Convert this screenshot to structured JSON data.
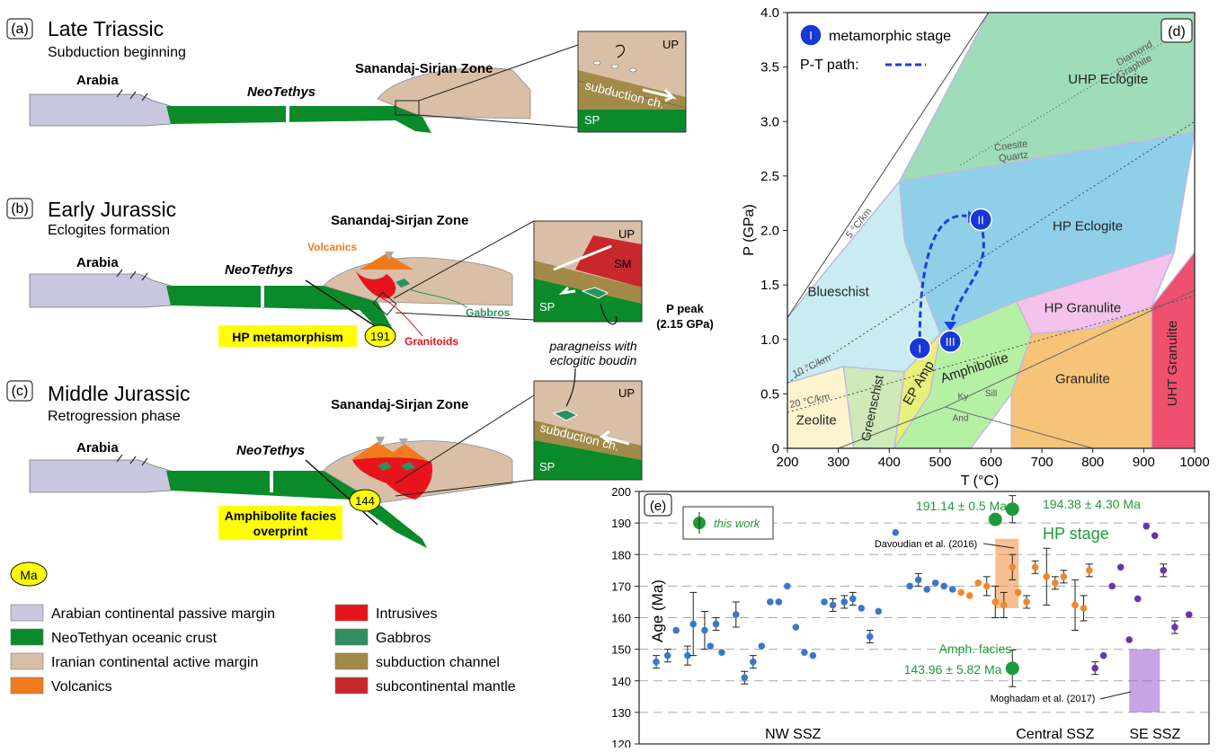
{
  "panels": {
    "a": {
      "letter": "(a)",
      "title": "Late Triassic",
      "subtitle": "Subduction beginning"
    },
    "b": {
      "letter": "(b)",
      "title": "Early Jurassic",
      "subtitle": "Eclogites formation"
    },
    "c": {
      "letter": "(c)",
      "title": "Middle Jurassic",
      "subtitle": "Retrogression phase"
    },
    "d": {
      "letter": "(d)"
    },
    "e": {
      "letter": "(e)"
    }
  },
  "sections": {
    "arabia": "Arabia",
    "neotethys": "NeoTethys",
    "ssz": "Sanandaj-Sirjan Zone",
    "volcanics": "Volcanics",
    "gabbros": "Gabbros",
    "granitoids": "Granitoids",
    "hp_metamorphism": "HP metamorphism",
    "age_b": "191",
    "amph_overprint_1": "Amphibolite facies",
    "amph_overprint_2": "overprint",
    "age_c": "144",
    "p_peak_1": "P peak",
    "p_peak_2": "(2.15 GPa)",
    "paragneiss_1": "paragneiss with",
    "paragneiss_2": "eclogitic boudin"
  },
  "insets": {
    "up": "UP",
    "sp": "SP",
    "sm": "SM",
    "subduction_channel": "subduction ch."
  },
  "legend": {
    "ma_label": "Ma",
    "items": [
      {
        "label": "Arabian continental passive margin",
        "color": "#c9c6e0"
      },
      {
        "label": "NeoTethyan oceanic crust",
        "color": "#0b8a2a"
      },
      {
        "label": "Iranian continental active margin",
        "color": "#d9bfa8"
      },
      {
        "label": "Volcanics",
        "color": "#f27a1e"
      },
      {
        "label": "Intrusives",
        "color": "#e8141c"
      },
      {
        "label": "Gabbros",
        "color": "#2f8f5e"
      },
      {
        "label": "subduction channel",
        "color": "#a28a48"
      },
      {
        "label": "subcontinental mantle",
        "color": "#c8282c"
      }
    ]
  },
  "pt_diagram": {
    "ylabel": "P (GPa)",
    "xlabel": "T (°C)",
    "x_ticks": [
      "200",
      "300",
      "400",
      "500",
      "600",
      "700",
      "800",
      "900",
      "1000"
    ],
    "y_ticks": [
      "0",
      "0.5",
      "1.0",
      "1.5",
      "2.0",
      "2.5",
      "3.0",
      "3.5",
      "4.0"
    ],
    "legend_stage_symbol": "I",
    "legend_stage": "metamorphic stage",
    "legend_path": "P-T path:",
    "facies": {
      "uhp_eclogite": "UHP Eclogite",
      "hp_eclogite": "HP Eclogite",
      "blueschist": "Blueschist",
      "hp_granulite": "HP Granulite",
      "uht_granulite": "UHT Granulite",
      "amphibolite": "Amphibolite",
      "ep_amp": "EP Amp",
      "greenschist": "Greenschist",
      "zeolite": "Zeolite",
      "granulite": "Granulite"
    },
    "labels": {
      "diamond": "Diamond",
      "graphite": "Graphite",
      "coesite": "Coesite",
      "quartz": "Quartz",
      "g5": "5 °C/km",
      "g10": "10 °C/km",
      "g20": "20 °C/km",
      "ky": "Ky",
      "sill": "Sill",
      "and": "And"
    },
    "stages": [
      {
        "label": "I",
        "T": 460,
        "P": 0.92
      },
      {
        "label": "II",
        "T": 580,
        "P": 2.1
      },
      {
        "label": "III",
        "T": 520,
        "P": 0.98
      }
    ]
  },
  "chart_data": {
    "type": "scatter",
    "ylabel": "Age (Ma)",
    "ylim": [
      120,
      200
    ],
    "y_ticks": [
      "120",
      "130",
      "140",
      "150",
      "160",
      "170",
      "180",
      "190",
      "200"
    ],
    "region_labels": [
      "NW SSZ",
      "Central SSZ",
      "SE SSZ"
    ],
    "legend_entry": "this work",
    "annotations": {
      "hp_age_1": "191.14 ± 0.5 Ma",
      "hp_age_2": "194.38 ± 4.30 Ma",
      "hp_stage": "HP stage",
      "amph_facies": "Amph. facies",
      "amph_age": "143.96 ± 5.82 Ma",
      "davoudian": "Davoudian et al. (2016)",
      "moghadam": "Moghadam et al. (2017)"
    },
    "colors": {
      "nw": "#3a78c8",
      "central": "#f0872a",
      "se": "#6a35a8",
      "this_work": "#1f9a3a"
    },
    "nw": [
      {
        "x": 0.03,
        "y": 146,
        "err": 2
      },
      {
        "x": 0.05,
        "y": 148,
        "err": 2
      },
      {
        "x": 0.065,
        "y": 156
      },
      {
        "x": 0.085,
        "y": 148,
        "err": 3
      },
      {
        "x": 0.095,
        "y": 158,
        "err": 10
      },
      {
        "x": 0.115,
        "y": 156,
        "err": 6
      },
      {
        "x": 0.125,
        "y": 151
      },
      {
        "x": 0.135,
        "y": 158,
        "err": 2
      },
      {
        "x": 0.145,
        "y": 149
      },
      {
        "x": 0.17,
        "y": 161,
        "err": 4
      },
      {
        "x": 0.185,
        "y": 141,
        "err": 2
      },
      {
        "x": 0.2,
        "y": 146,
        "err": 2
      },
      {
        "x": 0.215,
        "y": 151
      },
      {
        "x": 0.23,
        "y": 165
      },
      {
        "x": 0.245,
        "y": 165
      },
      {
        "x": 0.26,
        "y": 170
      },
      {
        "x": 0.275,
        "y": 157
      },
      {
        "x": 0.29,
        "y": 149
      },
      {
        "x": 0.305,
        "y": 148
      },
      {
        "x": 0.325,
        "y": 165
      },
      {
        "x": 0.34,
        "y": 164,
        "err": 2
      },
      {
        "x": 0.36,
        "y": 165,
        "err": 2
      },
      {
        "x": 0.375,
        "y": 166,
        "err": 2
      },
      {
        "x": 0.39,
        "y": 163
      },
      {
        "x": 0.405,
        "y": 154,
        "err": 2
      },
      {
        "x": 0.42,
        "y": 162
      },
      {
        "x": 0.45,
        "y": 187
      },
      {
        "x": 0.475,
        "y": 170
      },
      {
        "x": 0.49,
        "y": 172,
        "err": 2
      },
      {
        "x": 0.505,
        "y": 169
      },
      {
        "x": 0.52,
        "y": 171
      },
      {
        "x": 0.535,
        "y": 170
      },
      {
        "x": 0.55,
        "y": 169
      }
    ],
    "central": [
      {
        "x": 0.565,
        "y": 168
      },
      {
        "x": 0.58,
        "y": 167
      },
      {
        "x": 0.595,
        "y": 171
      },
      {
        "x": 0.61,
        "y": 170,
        "err": 3
      },
      {
        "x": 0.625,
        "y": 165,
        "err": 5
      },
      {
        "x": 0.64,
        "y": 164,
        "err": 4
      },
      {
        "x": 0.655,
        "y": 176,
        "err": 4
      },
      {
        "x": 0.665,
        "y": 168
      },
      {
        "x": 0.68,
        "y": 165,
        "err": 2
      },
      {
        "x": 0.695,
        "y": 176,
        "err": 2
      },
      {
        "x": 0.715,
        "y": 173,
        "err": 9
      },
      {
        "x": 0.73,
        "y": 171,
        "err": 2
      },
      {
        "x": 0.745,
        "y": 173,
        "err": 2
      },
      {
        "x": 0.765,
        "y": 164,
        "err": 8
      },
      {
        "x": 0.78,
        "y": 163,
        "err": 4
      },
      {
        "x": 0.79,
        "y": 175,
        "err": 2
      }
    ],
    "se": [
      {
        "x": 0.8,
        "y": 144,
        "err": 2
      },
      {
        "x": 0.815,
        "y": 148
      },
      {
        "x": 0.83,
        "y": 170
      },
      {
        "x": 0.845,
        "y": 176
      },
      {
        "x": 0.86,
        "y": 153
      },
      {
        "x": 0.875,
        "y": 166
      },
      {
        "x": 0.89,
        "y": 189
      },
      {
        "x": 0.905,
        "y": 186
      },
      {
        "x": 0.92,
        "y": 175,
        "err": 2
      },
      {
        "x": 0.94,
        "y": 157,
        "err": 2
      },
      {
        "x": 0.965,
        "y": 161
      }
    ],
    "this_work": [
      {
        "x": 0.625,
        "y": 191.14,
        "err": 0.5
      },
      {
        "x": 0.655,
        "y": 194.38,
        "err": 4.3
      },
      {
        "x": 0.655,
        "y": 143.96,
        "err": 5.82
      }
    ]
  }
}
